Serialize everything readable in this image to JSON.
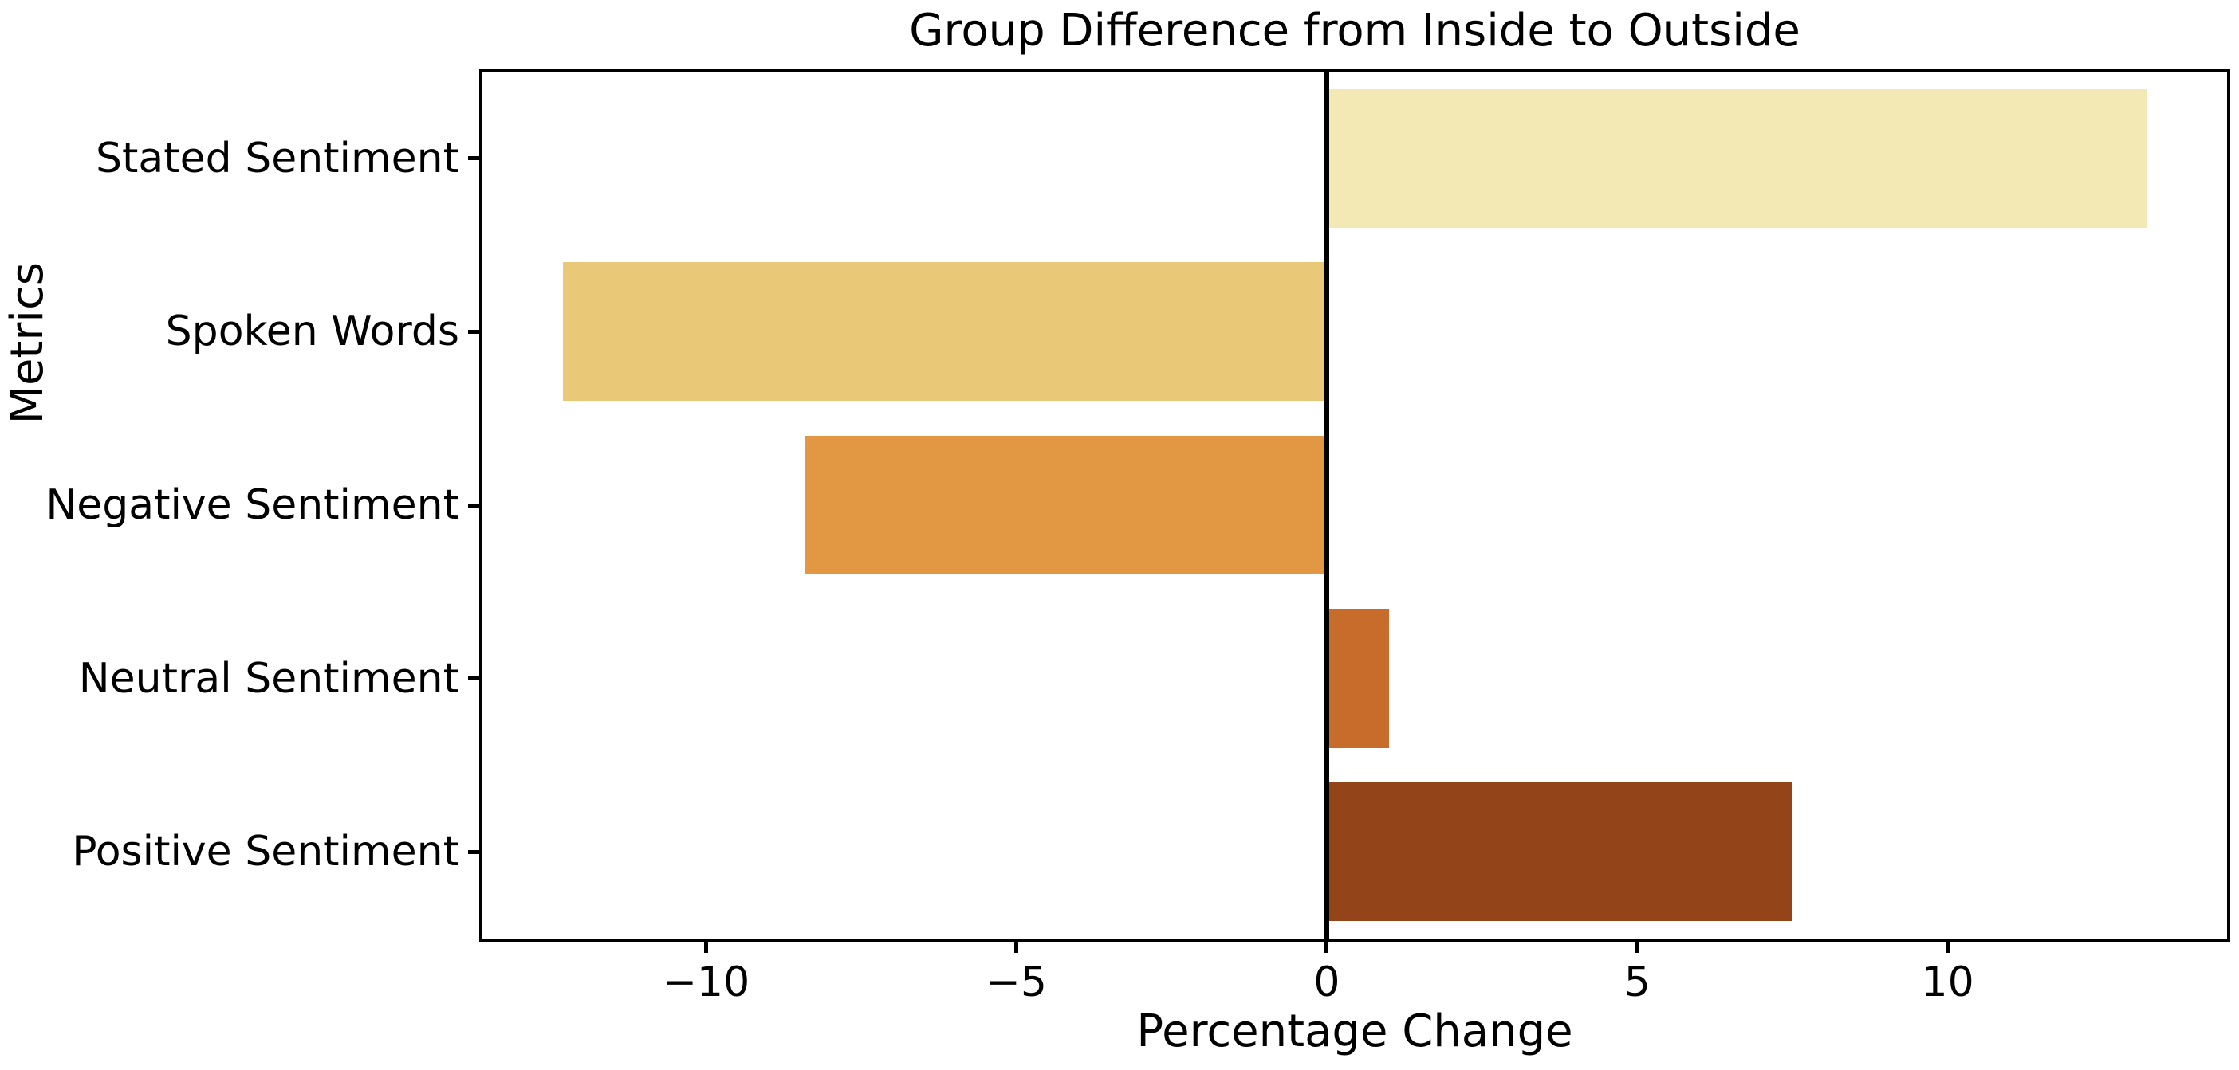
{
  "chart_data": {
    "type": "bar",
    "orientation": "horizontal",
    "title": "Group Difference from Inside to Outside",
    "xlabel": "Percentage Change",
    "ylabel": "Metrics",
    "categories": [
      "Stated Sentiment",
      "Spoken Words",
      "Negative Sentiment",
      "Neutral Sentiment",
      "Positive Sentiment"
    ],
    "values": [
      13.2,
      -12.3,
      -8.4,
      1.0,
      7.5
    ],
    "bar_colors": [
      "#F2E9B4",
      "#E9C878",
      "#E29743",
      "#C86C2B",
      "#944419"
    ],
    "xticks": [
      -10,
      -5,
      0,
      5,
      10
    ],
    "xtick_labels": [
      "−10",
      "−5",
      "0",
      "5",
      "10"
    ],
    "xlim": [
      -13.6,
      14.5
    ],
    "bar_height_frac": 0.8,
    "zero_line": true,
    "grid": false,
    "legend_position": "none",
    "colors": {
      "spine": "#000000",
      "zero_line": "#000000",
      "text": "#000000",
      "background": "#ffffff"
    }
  }
}
